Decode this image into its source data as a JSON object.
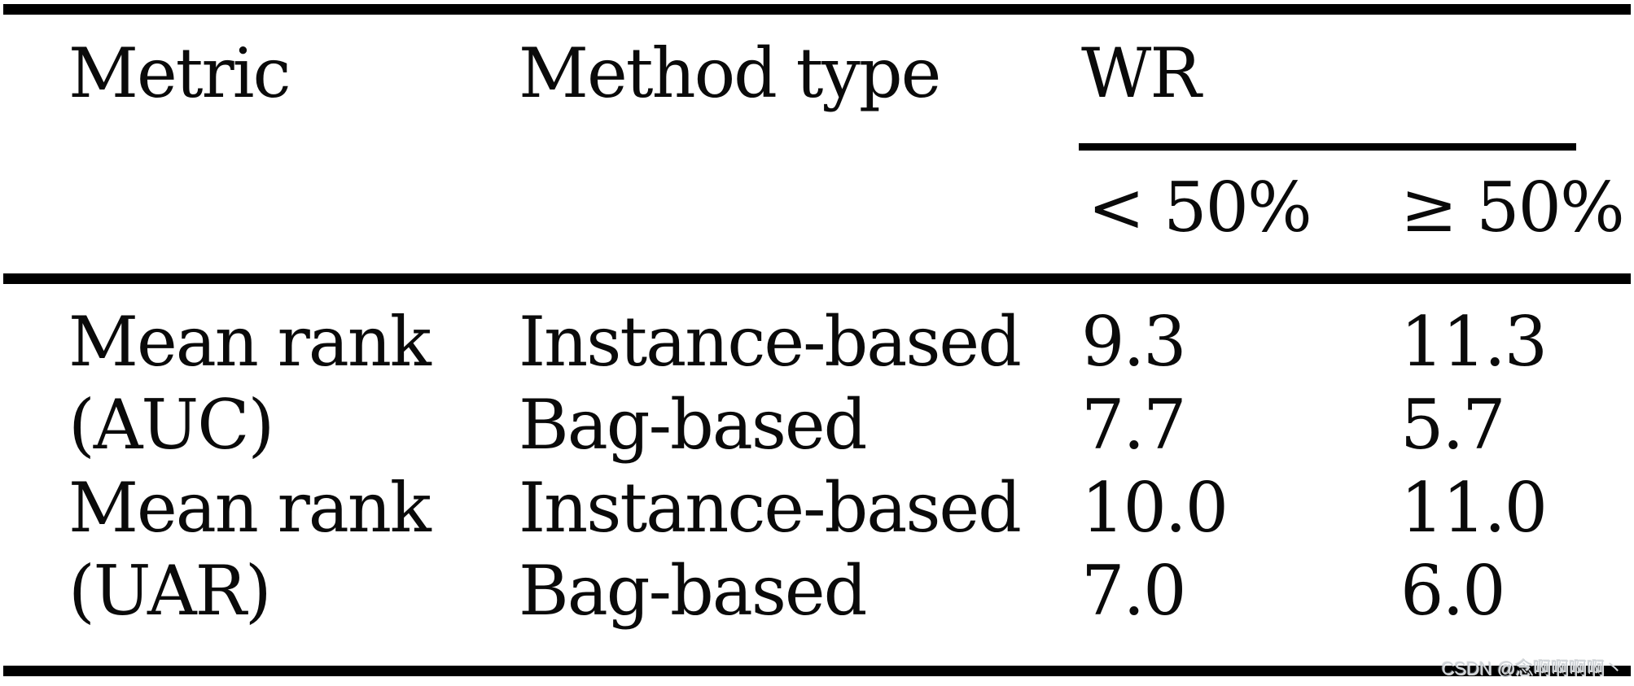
{
  "page": {
    "background_color": "#ffffff",
    "text_color": "#0a0a0a",
    "rule_color": "#000000"
  },
  "table": {
    "headers": {
      "metric": "Metric",
      "method_type": "Method type",
      "wr_group": "WR"
    },
    "wr_subheaders": {
      "lt50": "< 50%",
      "ge50": "≥ 50%"
    },
    "rows": [
      {
        "metric": "Mean rank",
        "method_type": "Instance-based",
        "wr_lt50": "9.3",
        "wr_ge50": "11.3"
      },
      {
        "metric": "(AUC)",
        "method_type": "Bag-based",
        "wr_lt50": "7.7",
        "wr_ge50": "5.7"
      },
      {
        "metric": "Mean rank",
        "method_type": "Instance-based",
        "wr_lt50": "10.0",
        "wr_ge50": "11.0"
      },
      {
        "metric": "(UAR)",
        "method_type": "Bag-based",
        "wr_lt50": "7.0",
        "wr_ge50": "6.0"
      }
    ]
  },
  "watermark": {
    "text": "CSDN @念啊啊啊啊丶",
    "color": "#ccd1d6"
  },
  "chart_data": {
    "type": "table",
    "columns": [
      "Metric",
      "Method type",
      "WR < 50%",
      "WR ≥ 50%"
    ],
    "rows": [
      [
        "Mean rank (AUC)",
        "Instance-based",
        9.3,
        11.3
      ],
      [
        "Mean rank (AUC)",
        "Bag-based",
        7.7,
        5.7
      ],
      [
        "Mean rank (UAR)",
        "Instance-based",
        10.0,
        11.0
      ],
      [
        "Mean rank (UAR)",
        "Bag-based",
        7.0,
        6.0
      ]
    ]
  }
}
